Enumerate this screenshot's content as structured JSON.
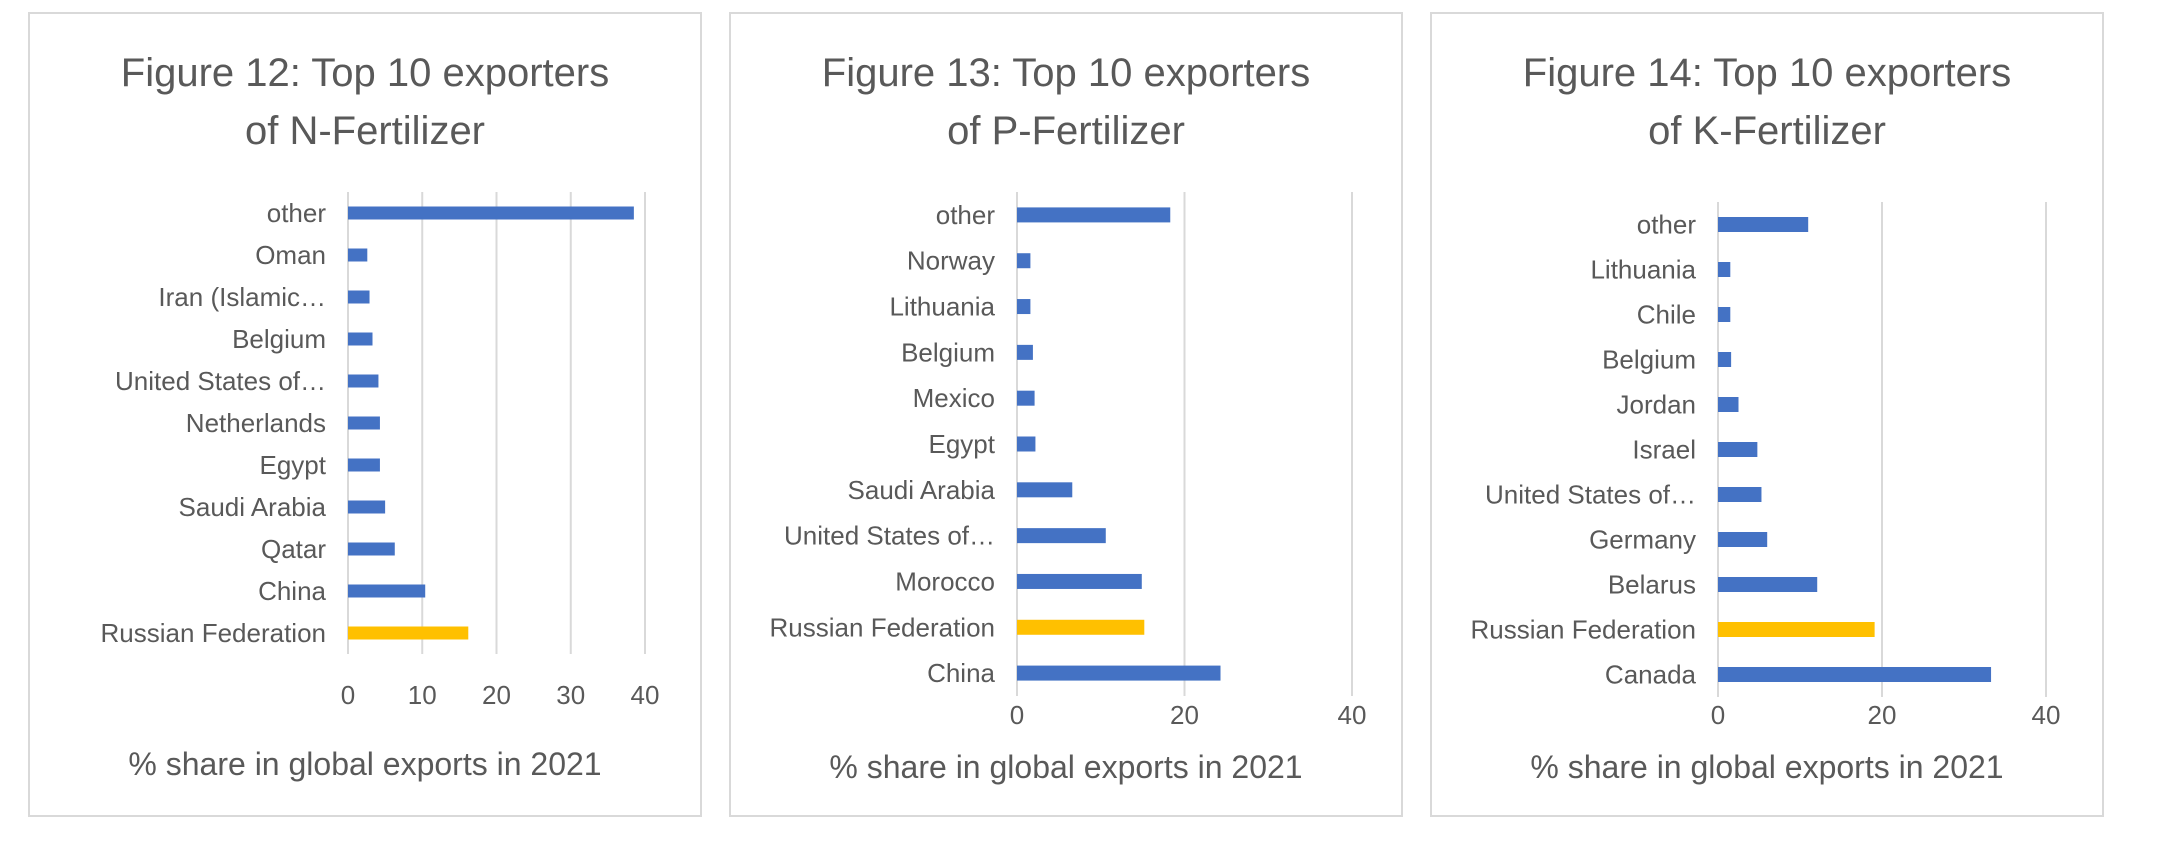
{
  "chart_data": [
    {
      "type": "bar",
      "orientation": "horizontal",
      "title": [
        "Figure 12: Top 10 exporters",
        "of N-Fertilizer"
      ],
      "xlabel": "% share in global exports in 2021",
      "categories": [
        "Russian Federation",
        "China",
        "Qatar",
        "Saudi Arabia",
        "Egypt",
        "Netherlands",
        "United States of…",
        "Belgium",
        "Iran (Islamic…",
        "Oman",
        "other"
      ],
      "values": [
        16.2,
        10.4,
        6.3,
        5.0,
        4.3,
        4.3,
        4.1,
        3.3,
        2.9,
        2.6,
        38.5
      ],
      "highlight": "Russian Federation",
      "xticks": [
        0,
        10,
        20,
        30,
        40
      ],
      "xlim": [
        0,
        40
      ],
      "grid": true,
      "colors": {
        "bar": "#4472c4",
        "highlight": "#ffc000",
        "grid": "#d9d9d9"
      }
    },
    {
      "type": "bar",
      "orientation": "horizontal",
      "title": [
        "Figure 13: Top 10 exporters",
        "of P-Fertilizer"
      ],
      "xlabel": "% share in global exports in 2021",
      "categories": [
        "China",
        "Russian Federation",
        "Morocco",
        "United States of…",
        "Saudi Arabia",
        "Egypt",
        "Mexico",
        "Belgium",
        "Lithuania",
        "Norway",
        "other"
      ],
      "values": [
        24.3,
        15.2,
        14.9,
        10.6,
        6.6,
        2.2,
        2.1,
        1.9,
        1.6,
        1.6,
        18.3
      ],
      "highlight": "Russian Federation",
      "xticks": [
        0,
        20,
        40
      ],
      "xlim": [
        0,
        40
      ],
      "grid": true,
      "colors": {
        "bar": "#4472c4",
        "highlight": "#ffc000",
        "grid": "#d9d9d9"
      }
    },
    {
      "type": "bar",
      "orientation": "horizontal",
      "title": [
        "Figure 14: Top 10 exporters",
        "of K-Fertilizer"
      ],
      "xlabel": "% share in global exports in 2021",
      "categories": [
        "Canada",
        "Russian Federation",
        "Belarus",
        "Germany",
        "United States of…",
        "Israel",
        "Jordan",
        "Belgium",
        "Chile",
        "Lithuania",
        "other"
      ],
      "values": [
        33.3,
        19.1,
        12.1,
        6.0,
        5.3,
        4.8,
        2.5,
        1.6,
        1.5,
        1.5,
        11.0
      ],
      "highlight": "Russian Federation",
      "xticks": [
        0,
        20,
        40
      ],
      "xlim": [
        0,
        40
      ],
      "grid": true,
      "colors": {
        "bar": "#4472c4",
        "highlight": "#ffc000",
        "grid": "#d9d9d9"
      }
    }
  ]
}
